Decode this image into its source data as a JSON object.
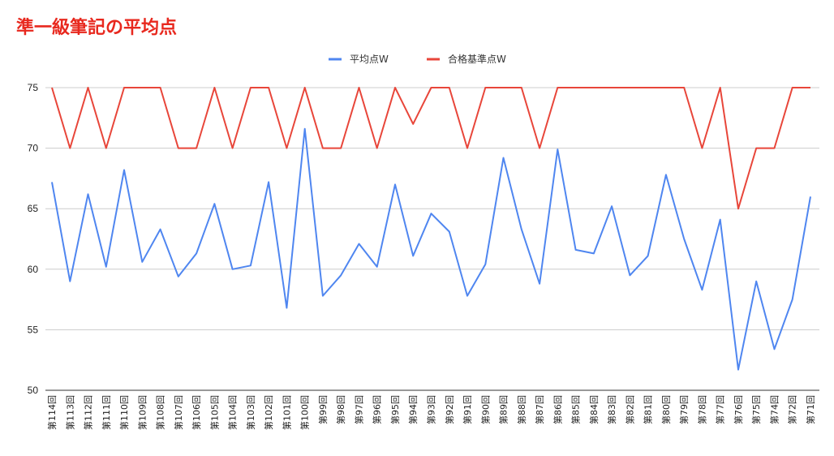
{
  "colors": {
    "title": "#e8281e",
    "series_avg": "#4f86f0",
    "series_pass": "#e8463a",
    "grid": "#cccccc",
    "baseline": "#333333"
  },
  "chart_data": {
    "type": "line",
    "title": "準一級筆記の平均点",
    "xlabel": "",
    "ylabel": "",
    "ylim": [
      50,
      75
    ],
    "yticks": [
      50,
      55,
      60,
      65,
      70,
      75
    ],
    "grid": true,
    "legend_position": "top-center",
    "categories": [
      "第114回",
      "第113回",
      "第112回",
      "第111回",
      "第110回",
      "第109回",
      "第108回",
      "第107回",
      "第106回",
      "第105回",
      "第104回",
      "第103回",
      "第102回",
      "第101回",
      "第100回",
      "第99回",
      "第98回",
      "第97回",
      "第96回",
      "第95回",
      "第94回",
      "第93回",
      "第92回",
      "第91回",
      "第90回",
      "第89回",
      "第88回",
      "第87回",
      "第86回",
      "第85回",
      "第84回",
      "第83回",
      "第82回",
      "第81回",
      "第80回",
      "第79回",
      "第78回",
      "第77回",
      "第76回",
      "第75回",
      "第74回",
      "第72回",
      "第71回"
    ],
    "series": [
      {
        "name": "平均点W",
        "color": "#4f86f0",
        "values": [
          67.2,
          59.0,
          66.2,
          60.2,
          68.2,
          60.6,
          63.3,
          59.4,
          61.3,
          65.4,
          60.0,
          60.3,
          67.2,
          56.8,
          71.6,
          57.8,
          59.5,
          62.1,
          60.2,
          67.0,
          61.1,
          64.6,
          63.1,
          57.8,
          60.4,
          69.2,
          63.3,
          58.8,
          69.9,
          61.6,
          61.3,
          65.2,
          59.5,
          61.1,
          67.8,
          62.5,
          58.3,
          64.1,
          51.7,
          59.0,
          53.4,
          57.5,
          66.0
        ]
      },
      {
        "name": "合格基準点W",
        "color": "#e8463a",
        "values": [
          75,
          70,
          75,
          70,
          75,
          75,
          75,
          70,
          70,
          75,
          70,
          75,
          75,
          70,
          75,
          70,
          70,
          75,
          70,
          75,
          72,
          75,
          75,
          70,
          75,
          75,
          75,
          70,
          75,
          75,
          75,
          75,
          75,
          75,
          75,
          75,
          70,
          75,
          65,
          70,
          70,
          75,
          75
        ]
      }
    ]
  }
}
